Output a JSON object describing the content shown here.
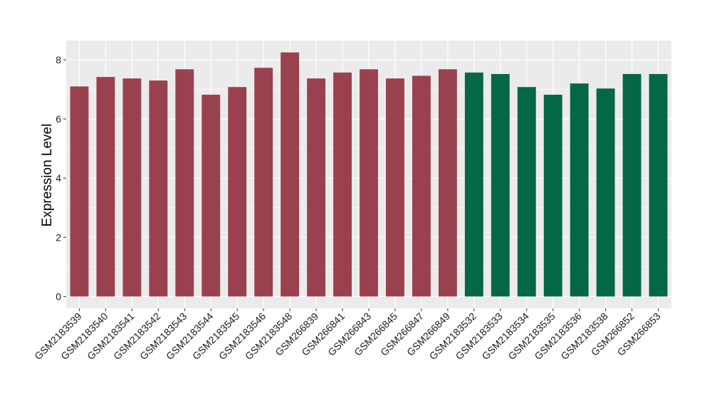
{
  "chart_data": {
    "type": "bar",
    "ylabel": "Expression Level",
    "xlabel": "",
    "ylim": [
      -0.4,
      8.65
    ],
    "yticks": [
      0,
      2,
      4,
      6,
      8
    ],
    "grid": true,
    "panel_background": "#EBEBEB",
    "grid_color": "#FFFFFF",
    "categories": [
      "GSM2183539",
      "GSM2183540",
      "GSM2183541",
      "GSM2183542",
      "GSM2183543",
      "GSM2183544",
      "GSM2183545",
      "GSM2183546",
      "GSM2183548",
      "GSM266839",
      "GSM266841",
      "GSM266843",
      "GSM266845",
      "GSM266847",
      "GSM266849",
      "GSM2183532",
      "GSM2183533",
      "GSM2183534",
      "GSM2183535",
      "GSM2183536",
      "GSM2183538",
      "GSM266852",
      "GSM266853"
    ],
    "values": [
      7.1,
      7.42,
      7.37,
      7.3,
      7.68,
      6.82,
      7.08,
      7.73,
      8.25,
      7.37,
      7.57,
      7.68,
      7.37,
      7.46,
      7.68,
      7.57,
      7.52,
      7.08,
      6.82,
      7.2,
      7.03,
      7.52,
      7.52
    ],
    "bar_colors": [
      "#9A4150",
      "#9A4150",
      "#9A4150",
      "#9A4150",
      "#9A4150",
      "#9A4150",
      "#9A4150",
      "#9A4150",
      "#9A4150",
      "#9A4150",
      "#9A4150",
      "#9A4150",
      "#9A4150",
      "#9A4150",
      "#9A4150",
      "#046748",
      "#046748",
      "#046748",
      "#046748",
      "#046748",
      "#046748",
      "#046748",
      "#046748"
    ]
  }
}
